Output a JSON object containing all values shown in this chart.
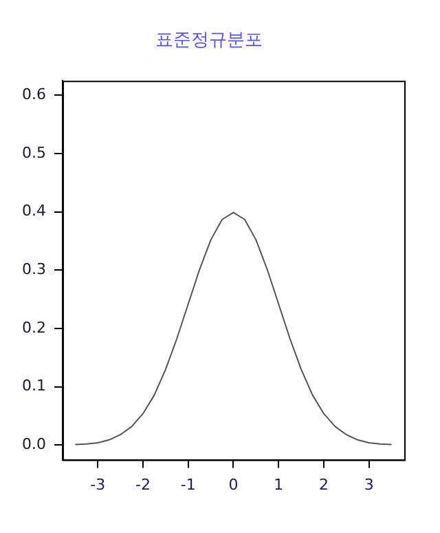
{
  "chart_data": {
    "type": "line",
    "title": "표준정규분포",
    "x": [
      -3.5,
      -3.25,
      -3,
      -2.75,
      -2.5,
      -2.25,
      -2,
      -1.75,
      -1.5,
      -1.25,
      -1,
      -0.75,
      -0.5,
      -0.25,
      0,
      0.25,
      0.5,
      0.75,
      1,
      1.25,
      1.5,
      1.75,
      2,
      2.25,
      2.5,
      2.75,
      3,
      3.25,
      3.5
    ],
    "series": [
      {
        "color": "#555555",
        "values": [
          0.001,
          0.002,
          0.004,
          0.009,
          0.018,
          0.032,
          0.054,
          0.086,
          0.13,
          0.183,
          0.242,
          0.301,
          0.352,
          0.387,
          0.399,
          0.387,
          0.352,
          0.301,
          0.242,
          0.183,
          0.13,
          0.086,
          0.054,
          0.032,
          0.018,
          0.009,
          0.004,
          0.002,
          0.001
        ]
      }
    ],
    "xlim": [
      -3.78,
      3.78
    ],
    "xticks": [
      -3,
      -2,
      -1,
      0,
      1,
      2,
      3
    ],
    "ylim": [
      -0.025,
      0.625
    ],
    "yticks": [
      {
        "value": 0,
        "label": "0.0"
      },
      0.1,
      0.2,
      0.3,
      0.4,
      0.5,
      0.6
    ],
    "grid": false,
    "legend": false,
    "marker": "none",
    "line_style": "solid"
  }
}
